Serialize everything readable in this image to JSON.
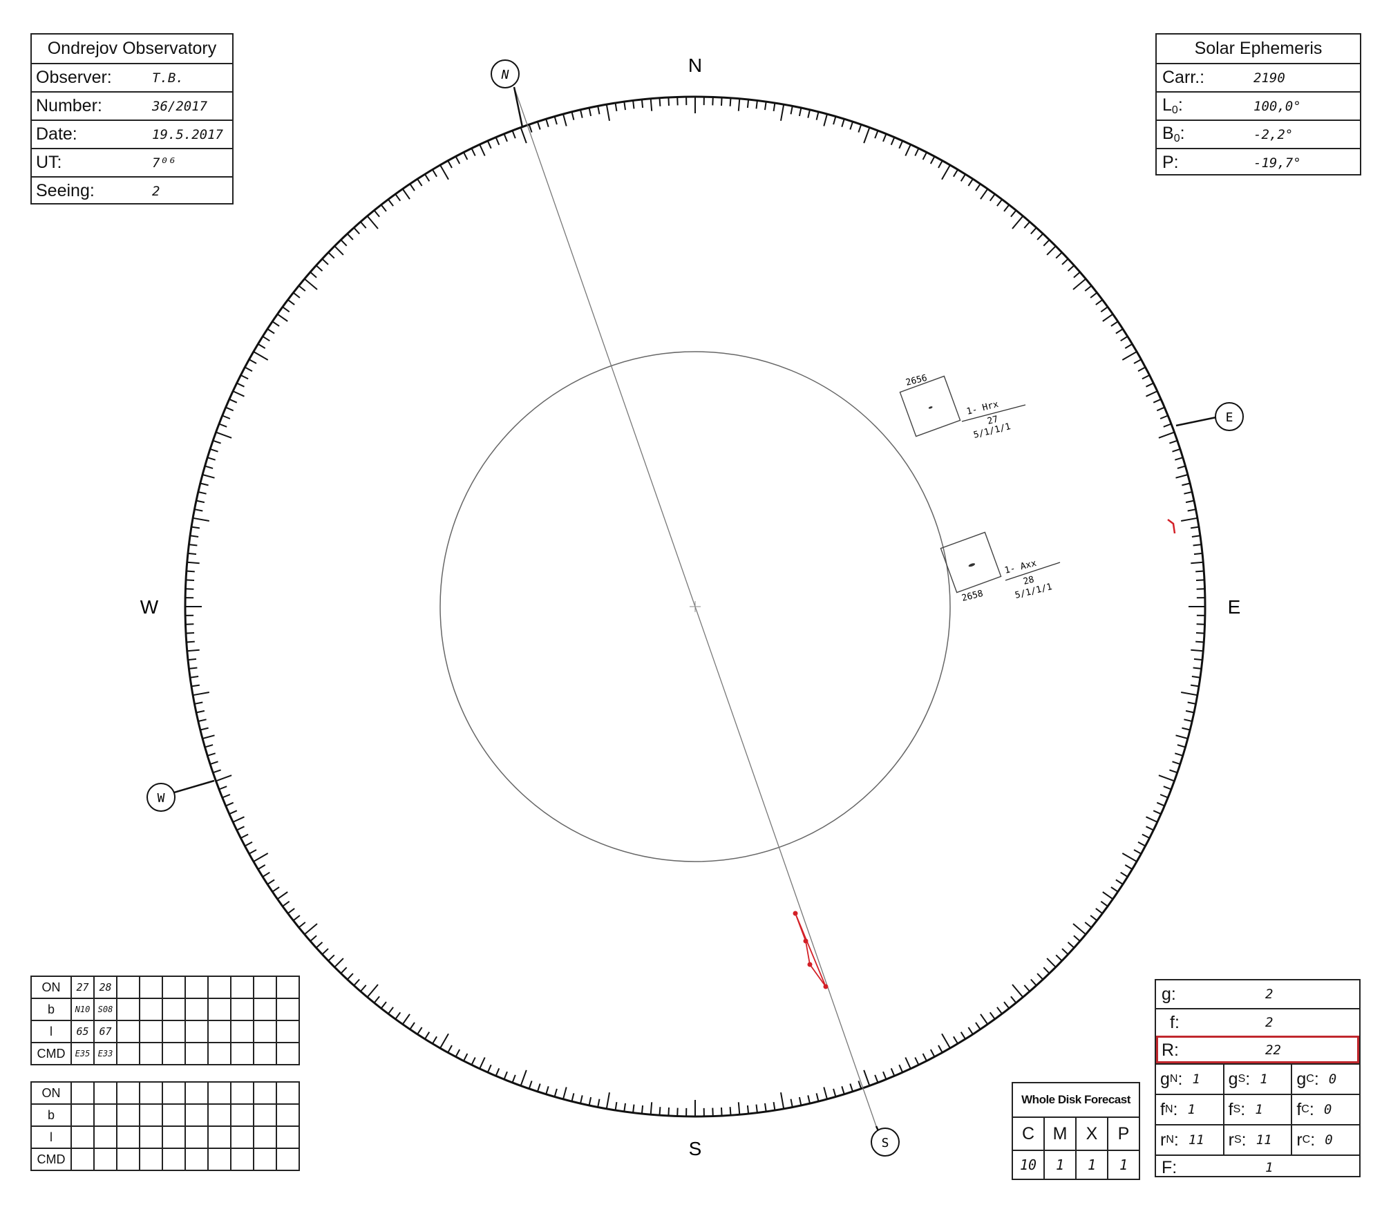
{
  "observatory": {
    "title": "Ondrejov Observatory",
    "rows": [
      {
        "label": "Observer:",
        "value": "T.B."
      },
      {
        "label": "Number:",
        "value": "36/2017"
      },
      {
        "label": "Date:",
        "value": "19.5.2017"
      },
      {
        "label": "UT:",
        "value": "7⁰⁶"
      },
      {
        "label": "Seeing:",
        "value": "2"
      }
    ]
  },
  "ephemeris": {
    "title": "Solar Ephemeris",
    "carr_label": "Carr.:",
    "carr": "2190",
    "l0_label": "L",
    "l0_sub": "0",
    "l0": "100,0°",
    "b0_label": "B",
    "b0_sub": "0",
    "b0": "-2,2°",
    "p_label": "P:",
    "p": "-19,7°"
  },
  "disk": {
    "cardinal": {
      "n": "N",
      "s": "S",
      "e": "E",
      "w": "W"
    },
    "markers": {
      "n": "N",
      "s": "S",
      "e": "E",
      "w": "W"
    },
    "groups": [
      {
        "number": "2656",
        "class": "1- Hrx",
        "id": "27",
        "counts": "5/1/1/1"
      },
      {
        "number": "2658",
        "class": "1- Axx",
        "id": "28",
        "counts": "5/1/1/1"
      }
    ]
  },
  "spot_table_1": {
    "headers": [
      "ON",
      "b",
      "l",
      "CMD"
    ],
    "on": [
      "27",
      "28"
    ],
    "b": [
      "N10",
      "S08"
    ],
    "l": [
      "65",
      "67"
    ],
    "cmd": [
      "E35",
      "E33"
    ]
  },
  "spot_table_2": {
    "headers": [
      "ON",
      "b",
      "l",
      "CMD"
    ]
  },
  "forecast": {
    "title": "Whole Disk Forecast",
    "classes": [
      "C",
      "M",
      "X",
      "P"
    ],
    "values": [
      "10",
      "1",
      "1",
      "1"
    ]
  },
  "stats": {
    "g_label": "g:",
    "g": "2",
    "f_label": "f:",
    "f": "2",
    "r_label": "R:",
    "r": "22",
    "gn": "1",
    "gs": "1",
    "gc": "0",
    "fn": "1",
    "fs": "1",
    "fc": "0",
    "rn": "11",
    "rs": "11",
    "rc": "0",
    "F_label": "F:",
    "F": "1"
  },
  "colors": {
    "ink": "#111111",
    "pencil": "#666666",
    "red": "#d32027"
  }
}
